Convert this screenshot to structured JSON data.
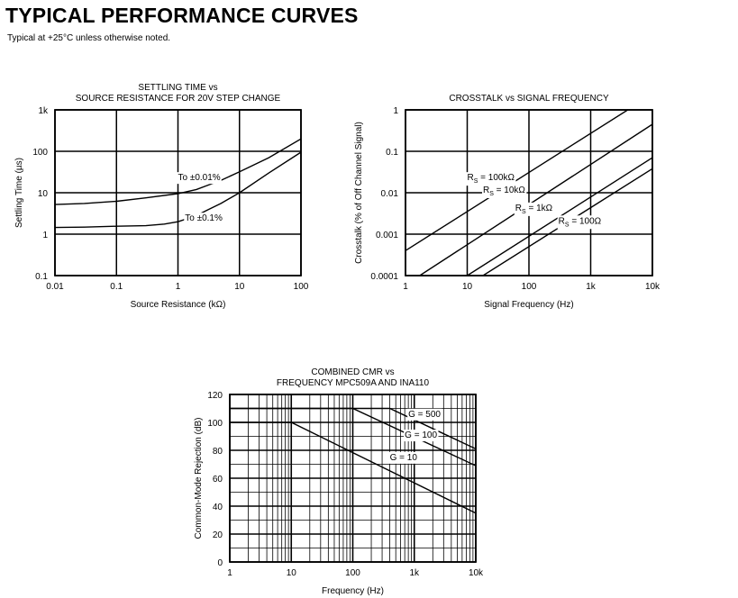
{
  "page": {
    "title": "TYPICAL PERFORMANCE CURVES",
    "subtitle": "Typical at +25°C unless otherwise noted."
  },
  "chart_data": [
    {
      "id": "settling",
      "type": "line",
      "title": [
        "SETTLING TIME vs",
        "SOURCE RESISTANCE FOR 20V STEP CHANGE"
      ],
      "xlabel": "Source Resistance (kΩ)",
      "ylabel": "Settling Time (µs)",
      "xscale": "log",
      "yscale": "log",
      "xlim": [
        0.01,
        100
      ],
      "ylim": [
        0.1,
        1000
      ],
      "xticks": [
        0.01,
        0.1,
        1,
        10,
        100
      ],
      "xtick_labels": [
        "0.01",
        "0.1",
        "1",
        "10",
        "100"
      ],
      "yticks": [
        0.1,
        1,
        10,
        100,
        1000
      ],
      "ytick_labels": [
        "0.1",
        "1",
        "10",
        "100",
        "1k"
      ],
      "grid": "decades",
      "series": [
        {
          "name": "To ±0.01%",
          "label_at": [
            1.0,
            20
          ],
          "x": [
            0.01,
            0.03,
            0.1,
            0.3,
            1,
            2,
            3,
            5,
            10,
            30,
            100
          ],
          "y": [
            5.2,
            5.5,
            6.2,
            7.5,
            9.5,
            12,
            15,
            20,
            32,
            70,
            200
          ]
        },
        {
          "name": "To ±0.1%",
          "label_at": [
            1.3,
            2.1
          ],
          "x": [
            0.01,
            0.03,
            0.1,
            0.3,
            0.6,
            1,
            2,
            3,
            5,
            10,
            30,
            100
          ],
          "y": [
            1.45,
            1.48,
            1.55,
            1.6,
            1.75,
            2.0,
            2.8,
            3.8,
            5.5,
            10,
            30,
            95
          ]
        }
      ]
    },
    {
      "id": "crosstalk",
      "type": "line",
      "title": [
        "CROSSTALK vs SIGNAL FREQUENCY"
      ],
      "xlabel": "Signal Frequency (Hz)",
      "ylabel": "Crosstalk (% of Off Channel Signal)",
      "xscale": "log",
      "yscale": "log",
      "xlim": [
        1,
        10000
      ],
      "ylim": [
        0.0001,
        1
      ],
      "xticks": [
        1,
        10,
        100,
        1000,
        10000
      ],
      "xtick_labels": [
        "1",
        "10",
        "100",
        "1k",
        "10k"
      ],
      "yticks": [
        0.0001,
        0.001,
        0.01,
        0.1,
        1
      ],
      "ytick_labels": [
        "0.0001",
        "0.001",
        "0.01",
        "0.1",
        "1"
      ],
      "grid": "decades",
      "series": [
        {
          "name": "R",
          "sub": "S",
          "value": " = 100kΩ",
          "label_at": [
            10,
            0.02
          ],
          "x": [
            1,
            4000
          ],
          "y": [
            0.0004,
            1.0
          ]
        },
        {
          "name": "R",
          "sub": "S",
          "value": " = 10kΩ",
          "label_at": [
            18,
            0.01
          ],
          "x": [
            1.7,
            10000
          ],
          "y": [
            0.0001,
            0.45
          ]
        },
        {
          "name": "R",
          "sub": "S",
          "value": " = 1kΩ",
          "label_at": [
            60,
            0.0037
          ],
          "x": [
            10,
            10000
          ],
          "y": [
            0.0001,
            0.07
          ]
        },
        {
          "name": "R",
          "sub": "S",
          "value": " = 100Ω",
          "label_at": [
            300,
            0.0018
          ],
          "x": [
            18,
            10000
          ],
          "y": [
            0.0001,
            0.038
          ]
        }
      ]
    },
    {
      "id": "cmr",
      "type": "line",
      "title": [
        "COMBINED CMR vs",
        "FREQUENCY MPC509A AND INA110"
      ],
      "xlabel": "Frequency (Hz)",
      "ylabel": "Common-Mode Rejection (dB)",
      "xscale": "log",
      "yscale": "linear",
      "xlim": [
        1,
        10000
      ],
      "ylim": [
        0,
        120
      ],
      "xticks": [
        1,
        10,
        100,
        1000,
        10000
      ],
      "xtick_labels": [
        "1",
        "10",
        "100",
        "1k",
        "10k"
      ],
      "yticks": [
        0,
        20,
        40,
        60,
        80,
        100,
        120
      ],
      "ytick_labels": [
        "0",
        "20",
        "40",
        "60",
        "80",
        "100",
        "120"
      ],
      "grid": "full-log-x",
      "series": [
        {
          "name": "G = 500",
          "label_at": [
            800,
            104
          ],
          "x": [
            1,
            400,
            10000
          ],
          "y": [
            110,
            110,
            81
          ]
        },
        {
          "name": "G = 100",
          "label_at": [
            700,
            89
          ],
          "x": [
            1,
            100,
            10000
          ],
          "y": [
            110,
            110,
            69
          ]
        },
        {
          "name": "G = 10",
          "label_at": [
            400,
            73
          ],
          "x": [
            1,
            10,
            10000
          ],
          "y": [
            100,
            100,
            35
          ]
        }
      ]
    }
  ]
}
